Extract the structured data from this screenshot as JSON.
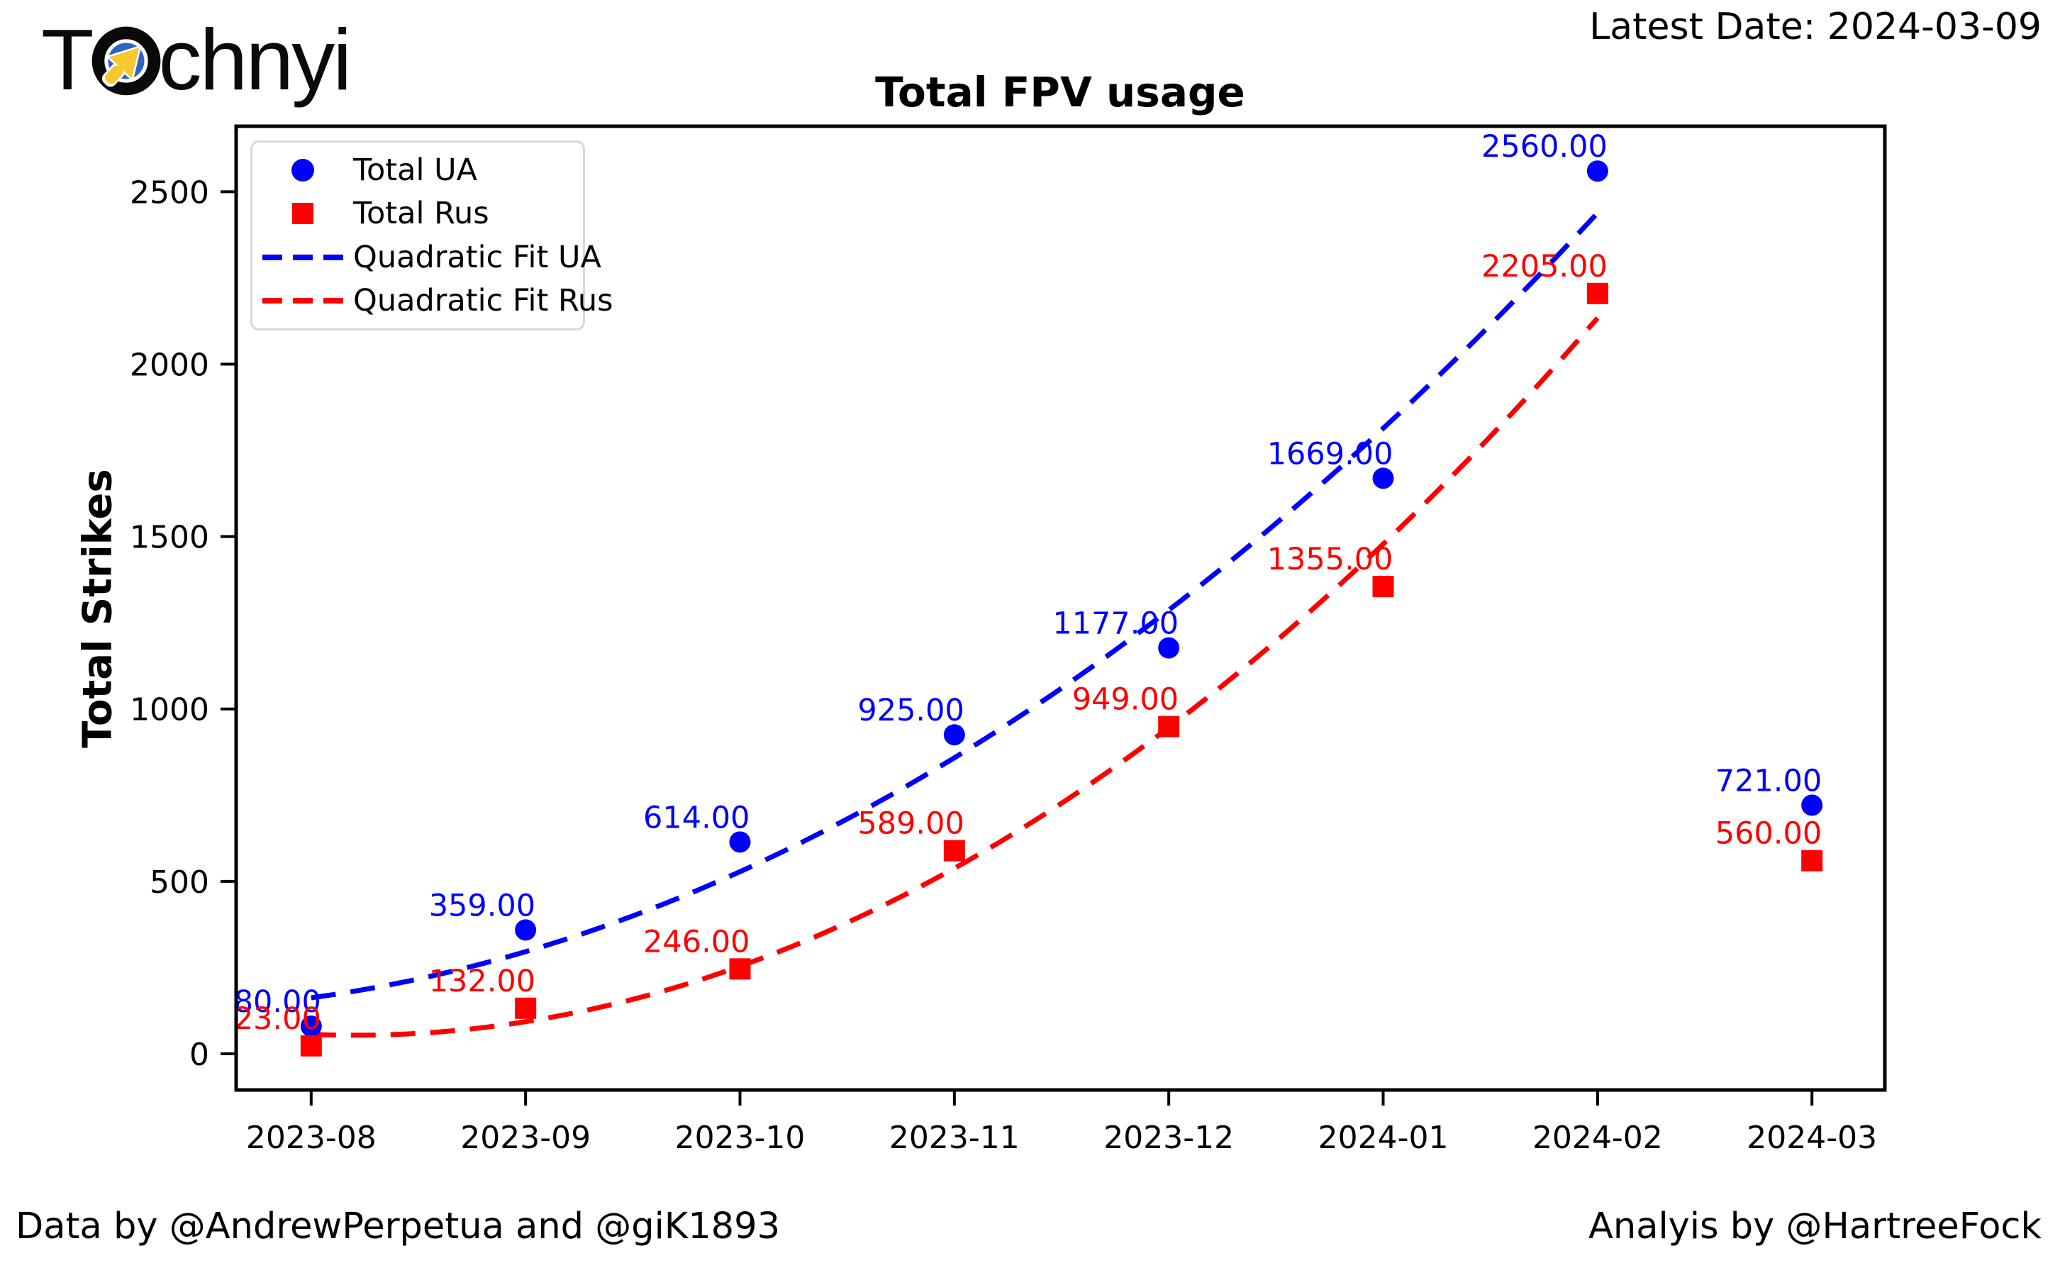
{
  "header": {
    "logo": {
      "prefix": "T",
      "suffix": "chnyi",
      "icon": "target-cursor-icon",
      "icon_colors": {
        "ring_outer": "#0a0a0a",
        "ring_inner": "#2e63c6",
        "arrow": "#f6c72e"
      }
    },
    "latest_date": "Latest Date: 2024-03-09"
  },
  "chart_data": {
    "type": "scatter",
    "title": "Total FPV usage",
    "xlabel": "",
    "ylabel": "Total Strikes",
    "categories": [
      "2023-08",
      "2023-09",
      "2023-10",
      "2023-11",
      "2023-12",
      "2024-01",
      "2024-02",
      "2024-03"
    ],
    "series": [
      {
        "name": "Total UA",
        "marker": "circle",
        "color": "#0000ff",
        "values": [
          80,
          359,
          614,
          925,
          1177,
          1669,
          2560,
          721
        ]
      },
      {
        "name": "Total Rus",
        "marker": "square",
        "color": "#ff0000",
        "values": [
          23,
          132,
          246,
          589,
          949,
          1355,
          2205,
          560
        ]
      }
    ],
    "fits": [
      {
        "label": "Quadratic Fit UA",
        "color": "#0000ff",
        "series_index": 0,
        "degree": 2,
        "fit_points": 7
      },
      {
        "label": "Quadratic Fit Rus",
        "color": "#ff0000",
        "series_index": 1,
        "degree": 2,
        "fit_points": 7
      }
    ],
    "point_label_decimals": 2,
    "yticks": [
      0,
      500,
      1000,
      1500,
      2000,
      2500
    ],
    "ylim": [
      -105,
      2690
    ],
    "xlim_index": [
      -0.35,
      7.34
    ],
    "grid": false,
    "legend_position": "upper left"
  },
  "footer": {
    "left": "Data by @AndrewPerpetua and @giK1893",
    "right": "Analyis by @HartreeFock"
  }
}
